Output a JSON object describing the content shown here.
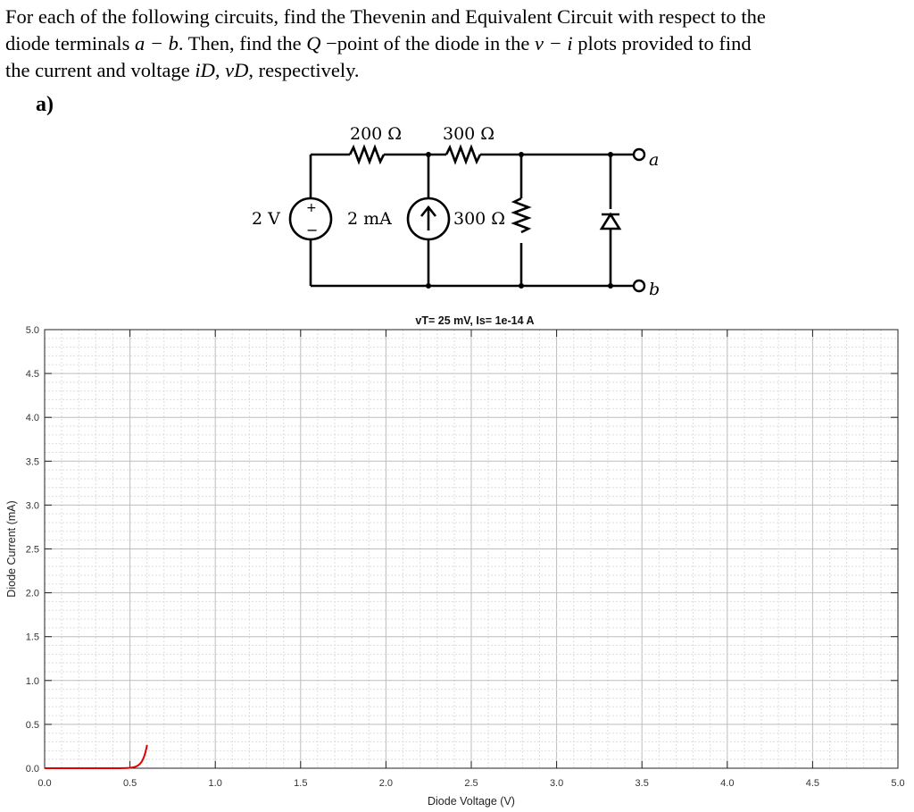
{
  "problem": {
    "line1": "For each of the following circuits, find the Thevenin and Equivalent Circuit with respect to the",
    "line2a": "diode terminals ",
    "line2_math1": "a − b",
    "line2b": ". Then, find the ",
    "line2_math2": "Q",
    "line2c": " −point of the diode in the ",
    "line2_math3": "v − i",
    "line2d": " plots provided to find",
    "line3a": "the current and voltage ",
    "line3_math": "iD, vD",
    "line3b": ", respectively.",
    "part_label": "a)"
  },
  "circuit": {
    "r1": "200 Ω",
    "r2": "300 Ω",
    "r3": "300 Ω",
    "vsource": "2 V",
    "isource": "2 mA",
    "plus": "+",
    "minus": "−",
    "terminal_a": "a",
    "terminal_b": "b"
  },
  "chart_data": {
    "type": "line",
    "title": "vT= 25 mV, Is= 1e-14 A",
    "xlabel": "Diode Voltage (V)",
    "ylabel": "Diode Current (mA)",
    "xlim": [
      0,
      5
    ],
    "ylim": [
      0,
      5
    ],
    "xticks": [
      "0.0",
      "0.5",
      "1.0",
      "1.5",
      "2.0",
      "2.5",
      "3.0",
      "3.5",
      "4.0",
      "4.5",
      "5.0"
    ],
    "yticks": [
      "0.0",
      "0.5",
      "1.0",
      "1.5",
      "2.0",
      "2.5",
      "3.0",
      "3.5",
      "4.0",
      "4.5",
      "5.0"
    ],
    "grid": true,
    "series": [
      {
        "vT": 0.025,
        "Is_A": 1e-14,
        "color": "#e00000"
      }
    ]
  }
}
